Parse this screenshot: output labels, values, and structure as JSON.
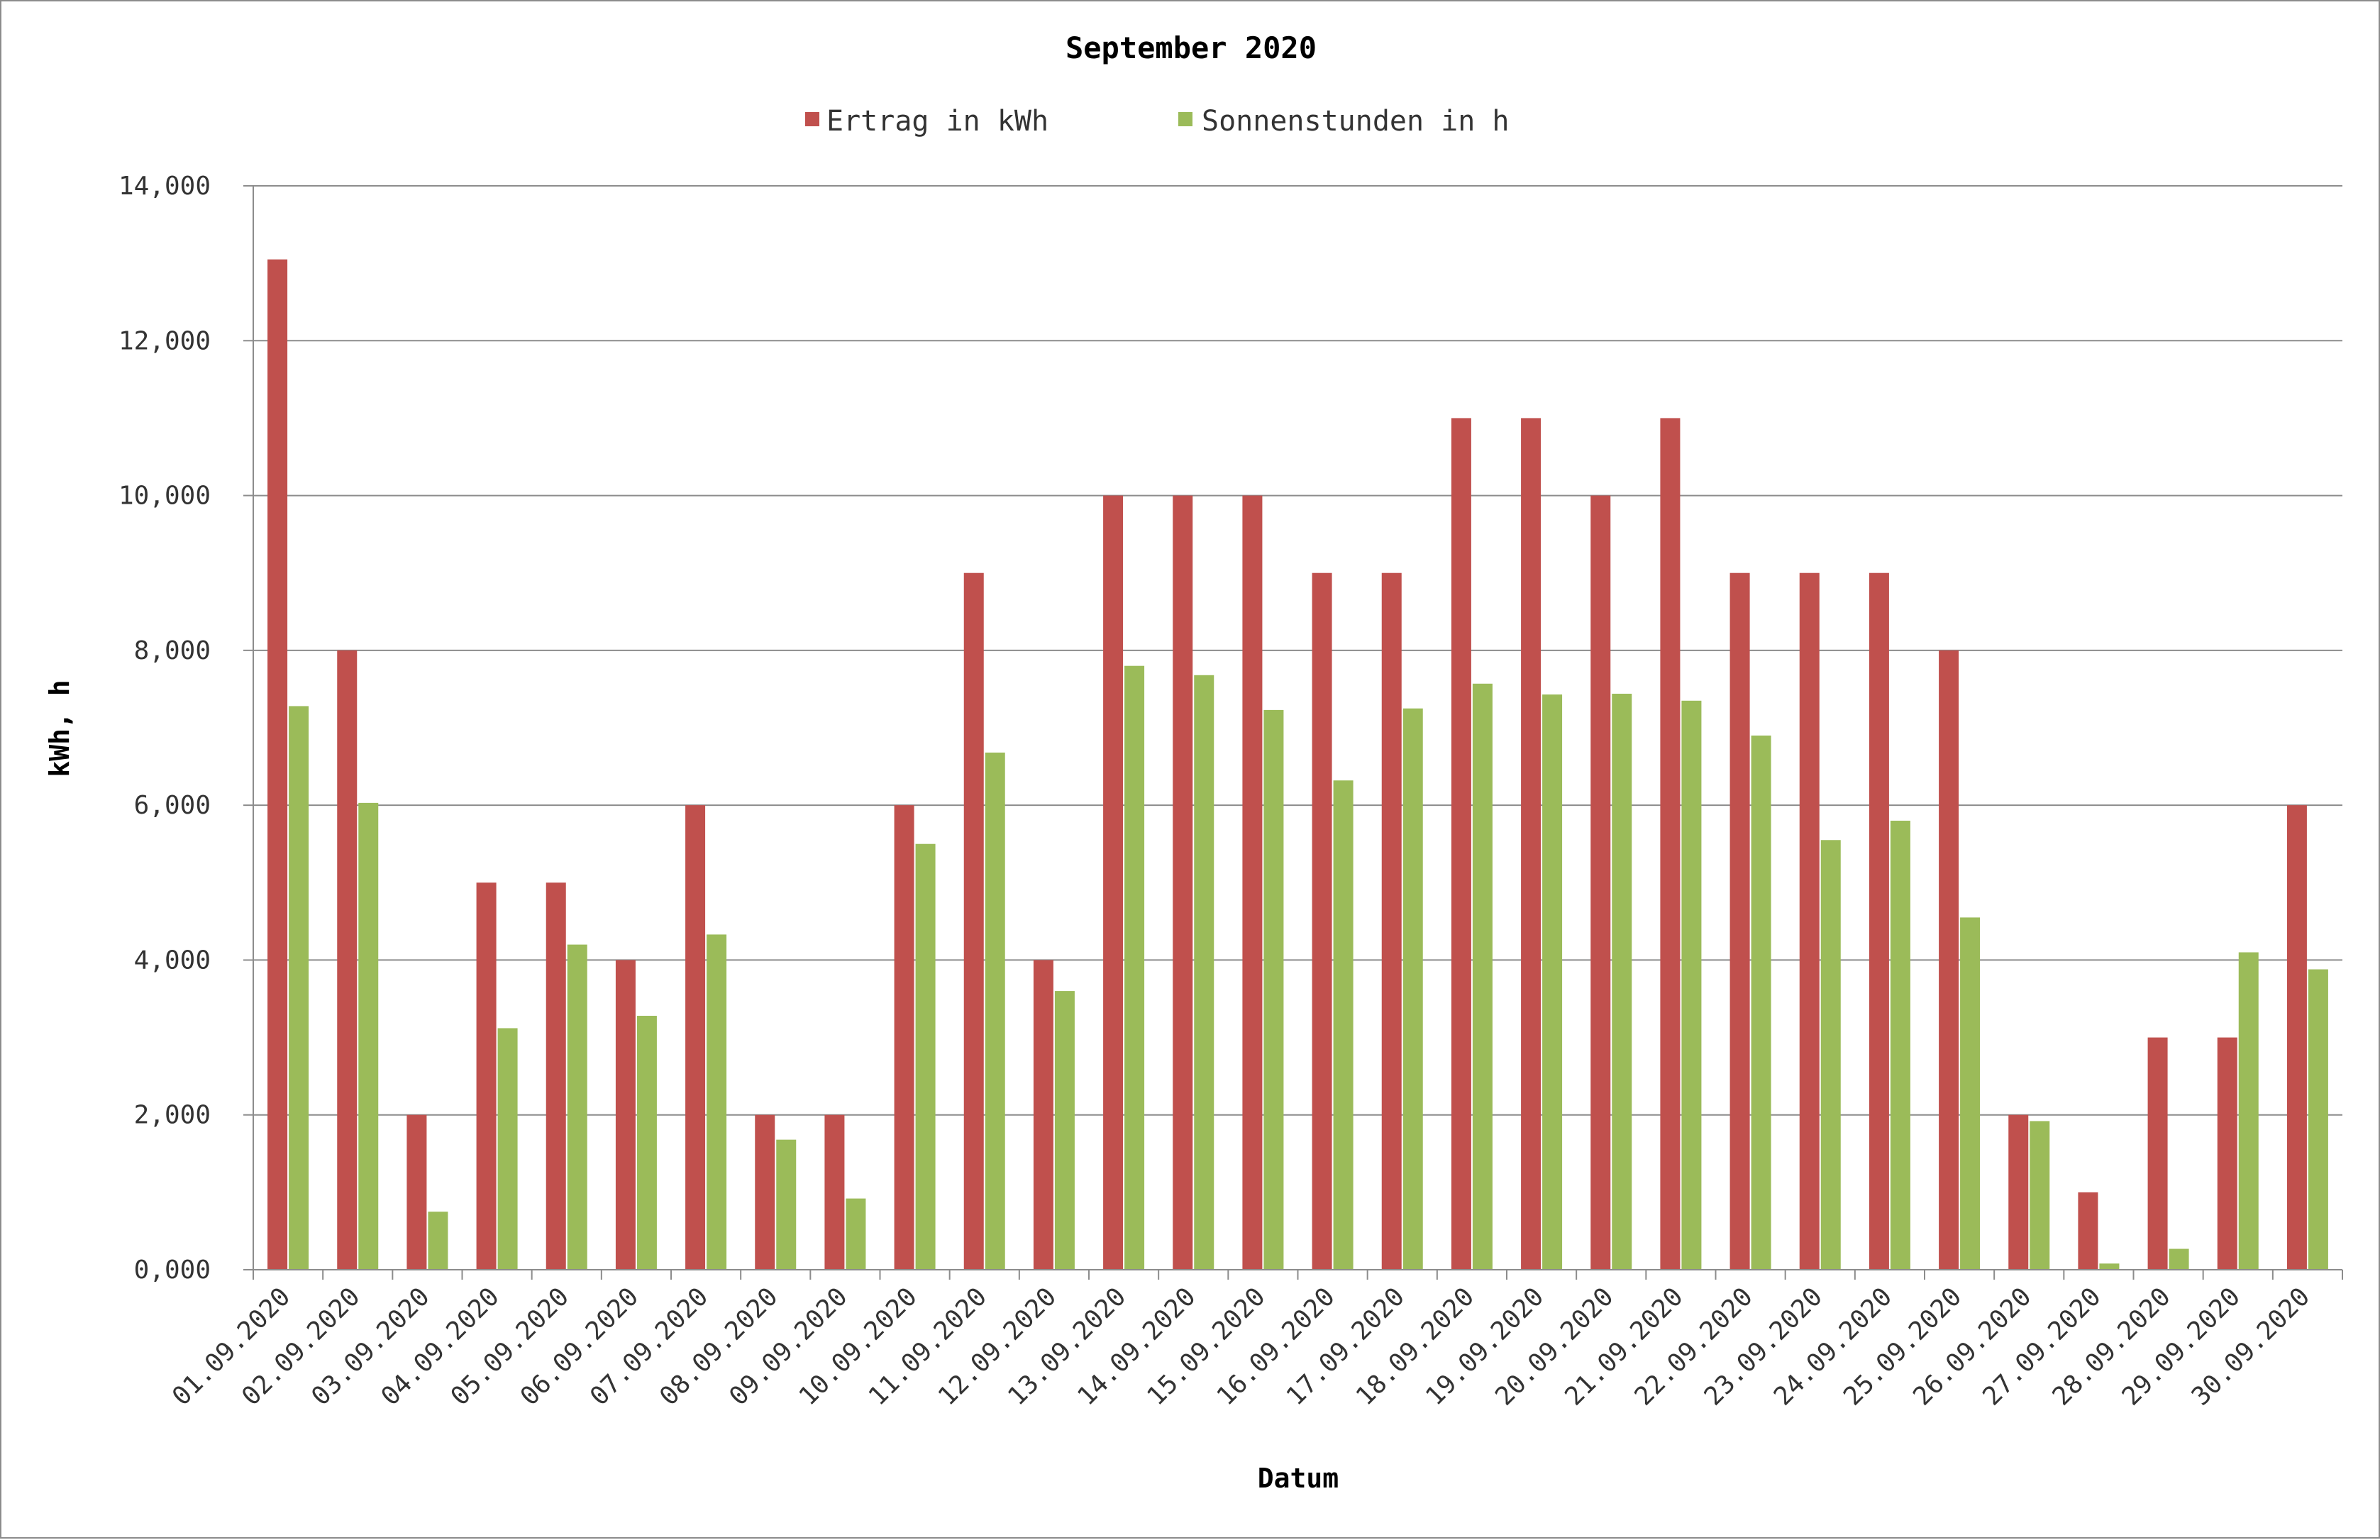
{
  "chart_data": {
    "type": "bar",
    "title": "September 2020",
    "xlabel": "Datum",
    "ylabel": "kWh, h",
    "ylim": [
      0,
      14
    ],
    "yticks": [
      "0,000",
      "2,000",
      "4,000",
      "6,000",
      "8,000",
      "10,000",
      "12,000",
      "14,000"
    ],
    "grid": true,
    "legend_position": "top",
    "categories": [
      "01.09.2020",
      "02.09.2020",
      "03.09.2020",
      "04.09.2020",
      "05.09.2020",
      "06.09.2020",
      "07.09.2020",
      "08.09.2020",
      "09.09.2020",
      "10.09.2020",
      "11.09.2020",
      "12.09.2020",
      "13.09.2020",
      "14.09.2020",
      "15.09.2020",
      "16.09.2020",
      "17.09.2020",
      "18.09.2020",
      "19.09.2020",
      "20.09.2020",
      "21.09.2020",
      "22.09.2020",
      "23.09.2020",
      "24.09.2020",
      "25.09.2020",
      "26.09.2020",
      "27.09.2020",
      "28.09.2020",
      "29.09.2020",
      "30.09.2020"
    ],
    "series": [
      {
        "name": "Ertrag in kWh",
        "color": "#c0504d",
        "values": [
          13.05,
          8,
          2,
          5,
          5,
          4,
          6,
          2,
          2,
          6,
          9,
          4,
          10,
          10,
          10,
          9,
          9,
          11,
          11,
          10,
          11,
          9,
          9,
          9,
          8,
          2,
          1,
          3,
          3,
          6
        ]
      },
      {
        "name": "Sonnenstunden in h",
        "color": "#9bbb59",
        "values": [
          7.28,
          6.03,
          0.75,
          3.12,
          4.2,
          3.28,
          4.33,
          1.68,
          0.92,
          5.5,
          6.68,
          3.6,
          7.8,
          7.68,
          7.23,
          6.32,
          7.25,
          7.57,
          7.43,
          7.44,
          7.35,
          6.9,
          5.55,
          5.8,
          4.55,
          1.92,
          0.08,
          0.27,
          4.1,
          3.88
        ]
      }
    ]
  }
}
